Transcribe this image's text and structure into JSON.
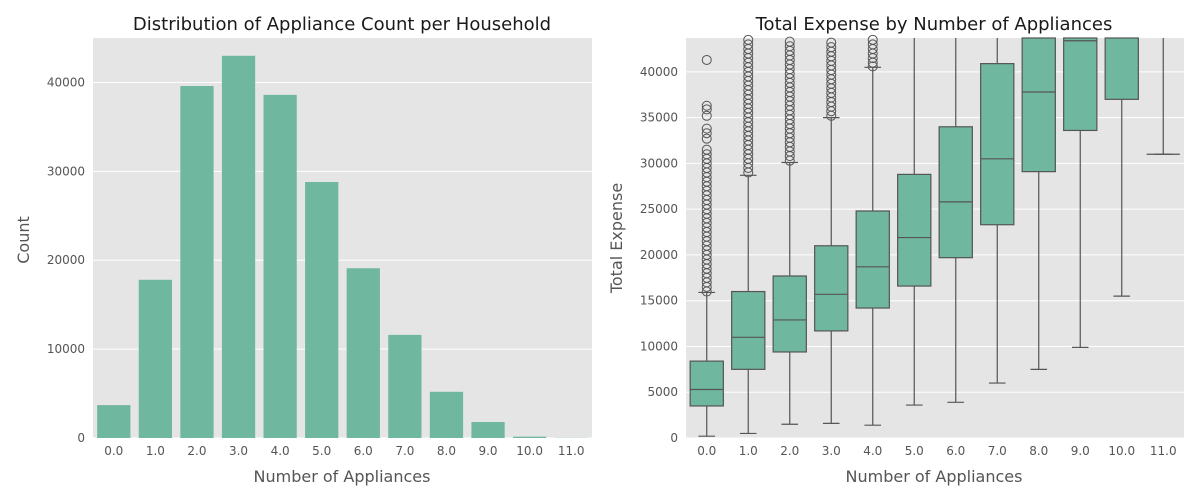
{
  "colors": {
    "bar": "#70b7a0",
    "plot_bg": "#e5e5e5",
    "grid": "#ffffff",
    "text": "#333333",
    "tick_text": "#555555",
    "line": "#555555"
  },
  "chart_data": [
    {
      "type": "bar",
      "title": "Distribution of Appliance Count per Household",
      "xlabel": "Number of Appliances",
      "ylabel": "Count",
      "categories": [
        "0.0",
        "1.0",
        "2.0",
        "3.0",
        "4.0",
        "5.0",
        "6.0",
        "7.0",
        "8.0",
        "9.0",
        "10.0",
        "11.0"
      ],
      "values": [
        3700,
        17800,
        39600,
        43000,
        38600,
        28800,
        19100,
        11600,
        5200,
        1800,
        150,
        20
      ],
      "ylim": [
        0,
        45000
      ],
      "yticks": [
        0,
        10000,
        20000,
        30000,
        40000
      ],
      "ytick_labels": [
        "0",
        "10000",
        "20000",
        "30000",
        "40000"
      ],
      "grid": true
    },
    {
      "type": "box",
      "title": "Total Expense by Number of Appliances",
      "xlabel": "Number of Appliances",
      "ylabel": "Total Expense",
      "categories": [
        "0.0",
        "1.0",
        "2.0",
        "3.0",
        "4.0",
        "5.0",
        "6.0",
        "7.0",
        "8.0",
        "9.0",
        "10.0",
        "11.0"
      ],
      "ylim": [
        0,
        43700
      ],
      "yticks": [
        0,
        5000,
        10000,
        15000,
        20000,
        25000,
        30000,
        35000,
        40000
      ],
      "ytick_labels": [
        "0",
        "5000",
        "10000",
        "15000",
        "20000",
        "25000",
        "30000",
        "35000",
        "40000"
      ],
      "grid": true,
      "boxes": [
        {
          "q1": 3500,
          "median": 5300,
          "q3": 8400,
          "whislo": 200,
          "whishi": 15900,
          "fliers": [
            16000,
            16500,
            17000,
            17500,
            18000,
            18500,
            19000,
            19500,
            20000,
            20500,
            21000,
            21500,
            22000,
            22500,
            23000,
            23500,
            24000,
            24500,
            25000,
            25500,
            26000,
            26500,
            27000,
            27500,
            28000,
            28500,
            29000,
            29500,
            30000,
            30500,
            31000,
            31500,
            32700,
            33300,
            33800,
            35200,
            35900,
            36300,
            41300
          ]
        },
        {
          "q1": 7500,
          "median": 11000,
          "q3": 16000,
          "whislo": 500,
          "whishi": 28700,
          "fliers": [
            29000,
            29500,
            30000,
            30500,
            31000,
            31500,
            32000,
            32500,
            33000,
            33500,
            34000,
            34500,
            35000,
            35500,
            36000,
            36500,
            37000,
            37500,
            38000,
            38500,
            39000,
            39500,
            40000,
            40500,
            41000,
            41500,
            42000,
            42500,
            43000,
            43500
          ]
        },
        {
          "q1": 9400,
          "median": 12900,
          "q3": 17700,
          "whislo": 1500,
          "whishi": 30100,
          "fliers": [
            30300,
            30800,
            31300,
            31800,
            32300,
            32800,
            33300,
            33800,
            34300,
            34800,
            35300,
            35800,
            36300,
            36800,
            37300,
            37800,
            38300,
            38800,
            39300,
            39800,
            40300,
            40800,
            41300,
            41800,
            42300,
            42800,
            43300
          ]
        },
        {
          "q1": 11700,
          "median": 15700,
          "q3": 21000,
          "whislo": 1600,
          "whishi": 35000,
          "fliers": [
            35200,
            35700,
            36200,
            36700,
            37200,
            37700,
            38200,
            38700,
            39200,
            39700,
            40200,
            40700,
            41200,
            41700,
            42200,
            42700,
            43200
          ]
        },
        {
          "q1": 14200,
          "median": 18700,
          "q3": 24800,
          "whislo": 1400,
          "whishi": 40500,
          "fliers": [
            40600,
            41000,
            41500,
            42000,
            42500,
            43000,
            43500
          ]
        },
        {
          "q1": 16600,
          "median": 21900,
          "q3": 28800,
          "whislo": 3600,
          "whishi": 43700,
          "fliers": []
        },
        {
          "q1": 19700,
          "median": 25800,
          "q3": 34000,
          "whislo": 3900,
          "whishi": 43700,
          "fliers": []
        },
        {
          "q1": 23300,
          "median": 30500,
          "q3": 40900,
          "whislo": 6000,
          "whishi": 43700,
          "fliers": []
        },
        {
          "q1": 29100,
          "median": 37800,
          "q3": 43700,
          "whislo": 7500,
          "whishi": 43700,
          "fliers": []
        },
        {
          "q1": 33600,
          "median": 43400,
          "q3": 43700,
          "whislo": 9900,
          "whishi": 43700,
          "fliers": []
        },
        {
          "q1": 37000,
          "median": 43700,
          "q3": 43700,
          "whislo": 15500,
          "whishi": 43700,
          "fliers": []
        },
        {
          "q1": 31000,
          "median": 31000,
          "q3": 31000,
          "whislo": 31000,
          "whishi": 43700,
          "fliers": []
        }
      ]
    }
  ]
}
